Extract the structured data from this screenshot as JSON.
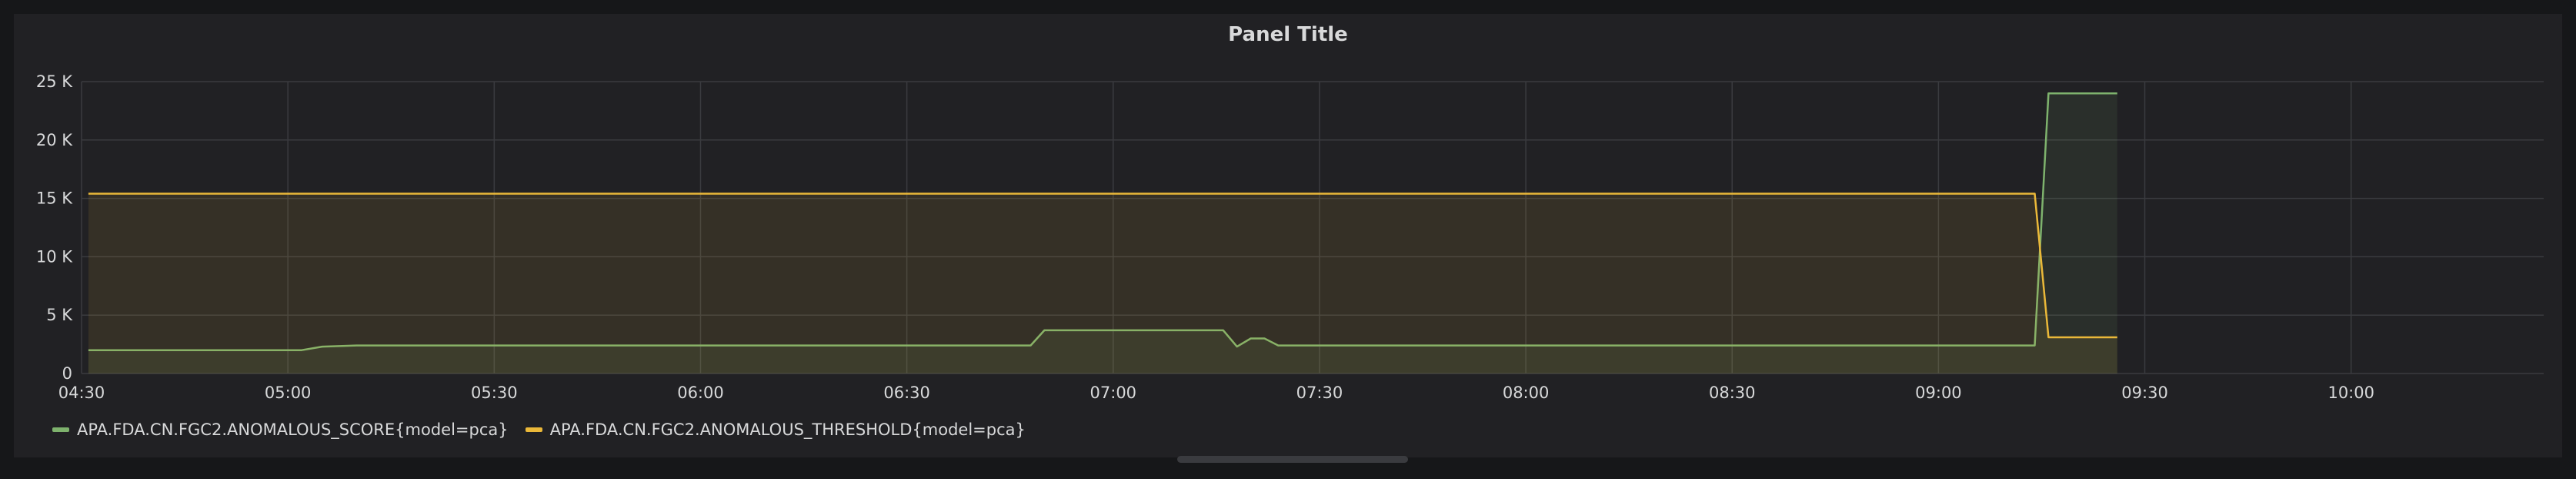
{
  "panel": {
    "title": "Panel Title"
  },
  "chart_data": {
    "type": "line",
    "title": "Panel Title",
    "x_tick_labels": [
      "04:30",
      "05:00",
      "05:30",
      "06:00",
      "06:30",
      "07:00",
      "07:30",
      "08:00",
      "08:30",
      "09:00",
      "09:30",
      "10:00"
    ],
    "x_ticks_minutes": [
      270,
      300,
      330,
      360,
      390,
      420,
      450,
      480,
      510,
      540,
      570,
      600
    ],
    "xlim_minutes": [
      270,
      628
    ],
    "y_tick_labels": [
      "0",
      "5 K",
      "10 K",
      "15 K",
      "20 K",
      "25 K"
    ],
    "y_ticks": [
      0,
      5000,
      10000,
      15000,
      20000,
      25000
    ],
    "ylim": [
      0,
      25000
    ],
    "grid": true,
    "legend_position": "bottom-left",
    "series": [
      {
        "name": "APA.FDA.CN.FGC2.ANOMALOUS_SCORE{model=pca}",
        "color": "#7eb26d",
        "x_minutes": [
          271,
          302,
          305,
          310,
          330,
          360,
          390,
          408,
          410,
          420,
          436,
          438,
          440,
          441,
          442,
          444,
          450,
          480,
          510,
          540,
          554,
          556,
          566
        ],
        "y": [
          2000,
          2000,
          2300,
          2400,
          2400,
          2400,
          2400,
          2400,
          3700,
          3700,
          3700,
          2300,
          3000,
          3000,
          3000,
          2400,
          2400,
          2400,
          2400,
          2400,
          2400,
          24000,
          24000
        ]
      },
      {
        "name": "APA.FDA.CN.FGC2.ANOMALOUS_THRESHOLD{model=pca}",
        "color": "#eab839",
        "x_minutes": [
          271,
          554,
          556,
          566
        ],
        "y": [
          15400,
          15400,
          3100,
          3100
        ]
      }
    ]
  }
}
